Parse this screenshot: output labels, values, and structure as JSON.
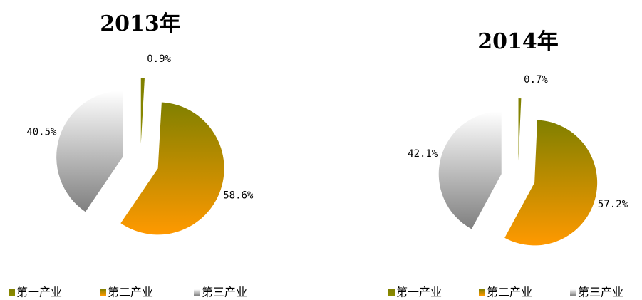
{
  "chart_data": [
    {
      "type": "pie",
      "title": "2013年",
      "categories": [
        "第一产业",
        "第二产业",
        "第三产业"
      ],
      "values": [
        0.9,
        58.6,
        40.5
      ],
      "value_labels": [
        "0.9%",
        "58.6%",
        "40.5%"
      ],
      "colors": [
        "#8c8c00",
        "#ff9900",
        "#7f7f7f"
      ]
    },
    {
      "type": "pie",
      "title": "2014年",
      "categories": [
        "第一产业",
        "第二产业",
        "第三产业"
      ],
      "values": [
        0.7,
        57.2,
        42.1
      ],
      "value_labels": [
        "0.7%",
        "57.2%",
        "42.1%"
      ],
      "colors": [
        "#8c8c00",
        "#ff9900",
        "#7f7f7f"
      ]
    }
  ]
}
